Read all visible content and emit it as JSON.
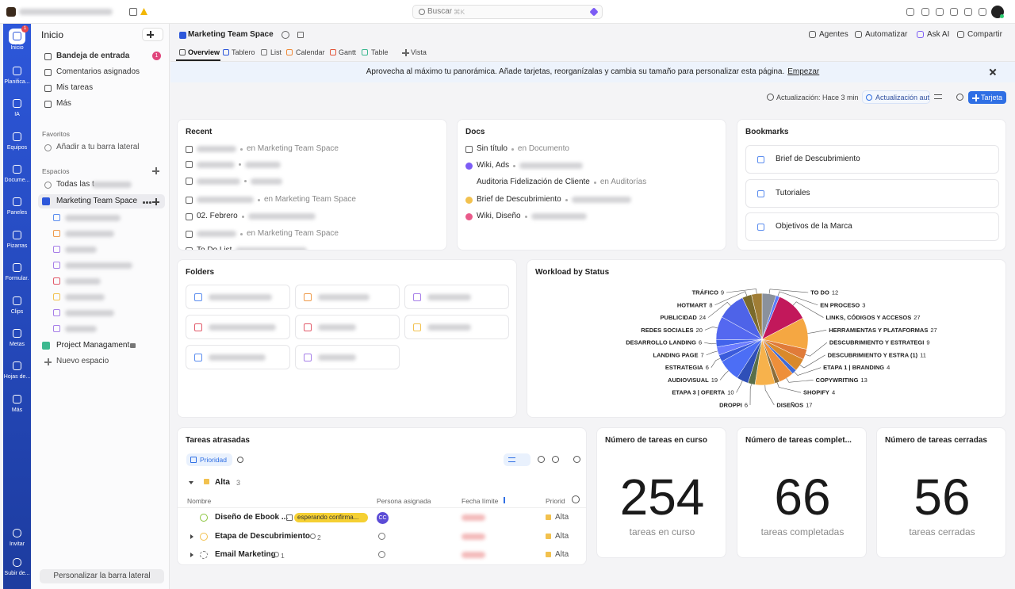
{
  "top_bar": {
    "search_placeholder": "Buscar",
    "search_shortcut": "⌘K"
  },
  "rail": {
    "inbox_badge": 1,
    "items": [
      "Inicio",
      "Planifica...",
      "IA",
      "Equipos",
      "Docume...",
      "Paneles",
      "Pizarras",
      "Formular.",
      "Clips",
      "Metas",
      "Hojas de...",
      "Más"
    ],
    "bottom_items": [
      "Invitar",
      "Subir de..."
    ]
  },
  "sidebar": {
    "title": "Inicio",
    "nav": [
      "Bandeja de entrada",
      "Comentarios asignados",
      "Mis tareas",
      "Más"
    ],
    "inbox_count": 1,
    "favorites": {
      "title": "Favoritos",
      "add": "Añadir a tu barra lateral"
    },
    "spaces": {
      "title": "Espacios",
      "all_tasks": "Todas las t",
      "items": [
        "Marketing Team Space",
        "Project Managament"
      ],
      "new": "Nuevo espacio"
    },
    "footer": "Personalizar la barra lateral"
  },
  "page": {
    "space": "Marketing Team Space",
    "tabs": [
      "Overview",
      "Tablero",
      "List",
      "Calendar",
      "Gantt",
      "Table",
      "Vista"
    ],
    "actions": [
      "Agentes",
      "Automatizar",
      "Ask AI",
      "Compartir"
    ]
  },
  "banner": {
    "text": "Aprovecha al máximo tu panorámica. Añade tarjetas, reorganízalas y cambia su tamaño para personalizar esta página.",
    "link": "Empezar"
  },
  "toolbar": {
    "updated": "Actualización: Hace 3 min",
    "auto_refresh": "Actualización auto",
    "add_card": "Tarjeta"
  },
  "recent": {
    "title": "Recent",
    "location": "en Marketing Team Space",
    "items": [
      "02. Febrero",
      "To Do List"
    ]
  },
  "docs": {
    "title": "Docs",
    "items": [
      {
        "name": "Sin título",
        "location": "en Documento"
      },
      {
        "name": "Wiki, Ads"
      },
      {
        "name": "Auditoria Fidelización de Cliente",
        "location": "en Auditorías"
      },
      {
        "name": "Brief de Descubrimiento"
      },
      {
        "name": "Wiki, Diseño"
      }
    ]
  },
  "bookmarks": {
    "title": "Bookmarks",
    "items": [
      "Brief de Descubrimiento",
      "Tutoriales",
      "Objetivos de la Marca"
    ]
  },
  "folders": {
    "title": "Folders"
  },
  "chart_data": {
    "type": "pie",
    "title": "Workload by Status",
    "categories": [
      "TO DO",
      "EN PROCESO",
      "LINKS, CÓDIGOS Y ACCESOS",
      "HERRAMIENTAS Y PLATAFORMAS",
      "DESCUBRIMIENTO Y ESTRATEGI",
      "DESCUBRIMIENTO Y ESTRA (1)",
      "ETAPA 1 | BRANDING",
      "COPYWRITING",
      "SHOPIFY",
      "DISEÑOS",
      "DROPPI",
      "ETAPA 3 | OFERTA",
      "AUDIOVISUAL",
      "ESTRATEGIA",
      "LANDING PAGE",
      "DESARROLLO LANDING",
      "REDES SOCIALES",
      "PUBLICIDAD",
      "HOTMART",
      "TRÁFICO"
    ],
    "values": [
      12,
      3,
      27,
      27,
      9,
      11,
      4,
      13,
      4,
      17,
      6,
      10,
      19,
      6,
      7,
      6,
      20,
      24,
      8,
      9
    ],
    "colors": [
      "#8a919c",
      "#5b7cfa",
      "#c2185b",
      "#f5a742",
      "#e07b39",
      "#d9892b",
      "#3f6ad8",
      "#ee8f3a",
      "#8a6d3b",
      "#f7b24c",
      "#5a6f4a",
      "#2f4fb8",
      "#4c6ef5",
      "#3b5bdb",
      "#6b7cff",
      "#4263eb",
      "#5468f0",
      "#4e63e8",
      "#7a6a2c",
      "#a07d35"
    ]
  },
  "overdue": {
    "title": "Tareas atrasadas",
    "filter": "Prioridad",
    "group": {
      "name": "Alta",
      "count": 3
    },
    "columns": [
      "Nombre",
      "Persona asignada",
      "Fecha límite",
      "Priorid"
    ],
    "rows": [
      {
        "name": "Diseño de Ebook ...",
        "tag": "esperando confirma...",
        "assignee": "CC",
        "priority": "Alta"
      },
      {
        "name": "Etapa de Descubrimiento",
        "subtasks": 2,
        "priority": "Alta"
      },
      {
        "name": "Email Marketing",
        "subtasks": 1,
        "priority": "Alta"
      }
    ]
  },
  "kpis": [
    {
      "title": "Número de tareas en curso",
      "value": 254,
      "caption": "tareas en curso"
    },
    {
      "title": "Número de tareas complet...",
      "value": 66,
      "caption": "tareas completadas"
    },
    {
      "title": "Número de tareas cerradas",
      "value": 56,
      "caption": "tareas cerradas"
    }
  ]
}
